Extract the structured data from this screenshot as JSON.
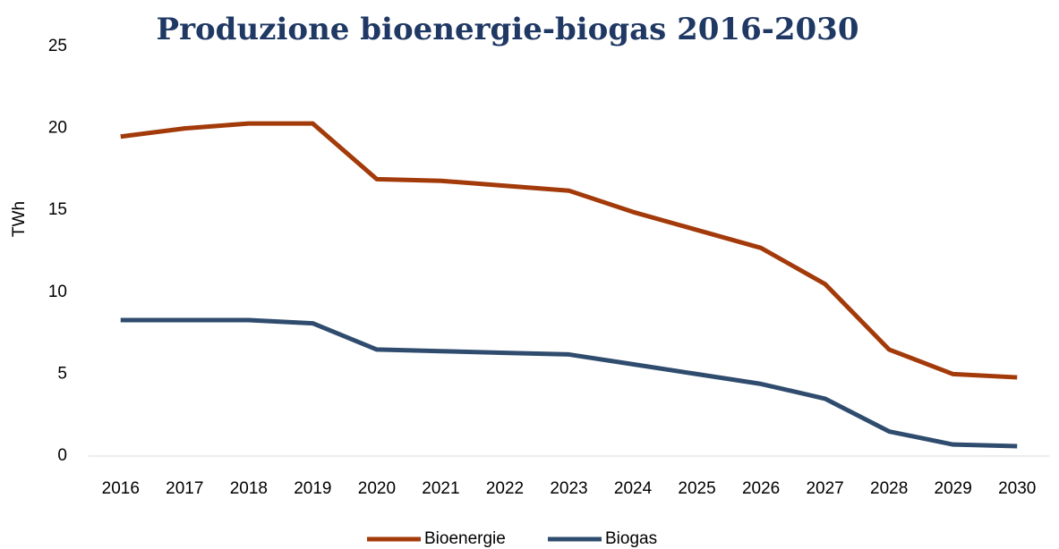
{
  "chart_data": {
    "type": "line",
    "title": "Produzione bioenergie-biogas 2016-2030",
    "y_label": "TWh",
    "categories": [
      "2016",
      "2017",
      "2018",
      "2019",
      "2020",
      "2021",
      "2022",
      "2023",
      "2024",
      "2025",
      "2026",
      "2027",
      "2028",
      "2029",
      "2030"
    ],
    "series": [
      {
        "name": "Bioenergie",
        "color": "#a33a0a",
        "values": [
          19.5,
          20.0,
          20.3,
          20.3,
          16.9,
          16.8,
          16.5,
          16.2,
          14.9,
          13.8,
          12.7,
          10.5,
          6.5,
          5.0,
          4.8
        ]
      },
      {
        "name": "Biogas",
        "color": "#2f4c6e",
        "values": [
          8.3,
          8.3,
          8.3,
          8.1,
          6.5,
          6.4,
          6.3,
          6.2,
          5.6,
          5.0,
          4.4,
          3.5,
          1.5,
          0.7,
          0.6
        ]
      }
    ],
    "ylim": [
      0,
      25
    ],
    "yticks": [
      0,
      5,
      10,
      15,
      20,
      25
    ],
    "grid": false,
    "legend": "bottom"
  }
}
